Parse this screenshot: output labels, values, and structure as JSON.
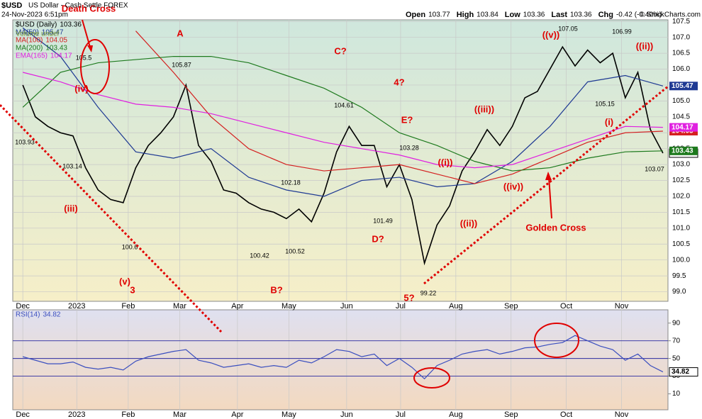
{
  "header": {
    "symbol": "$USD",
    "name": "US Dollar - Cash Settle FOREX",
    "timestamp": "24-Nov-2023 6:51pm",
    "copyright": "© StockCharts.com",
    "quote": [
      {
        "label": "Open",
        "value": 103.77
      },
      {
        "label": "High",
        "value": 103.84
      },
      {
        "label": "Low",
        "value": 103.36
      },
      {
        "label": "Last",
        "value": 103.36
      },
      {
        "label": "Chg",
        "value": -0.42
      }
    ],
    "change_pct": "(-0.40%)"
  },
  "chart_data": [
    {
      "type": "line",
      "volume_note": "Volume undef",
      "xlim": [
        -0.8,
        51.4
      ],
      "xticks": [
        {
          "value": 0,
          "label": "Dec"
        },
        {
          "value": 4.3,
          "label": "2023"
        },
        {
          "value": 8.4,
          "label": "Feb"
        },
        {
          "value": 12.5,
          "label": "Mar"
        },
        {
          "value": 17.1,
          "label": "Apr"
        },
        {
          "value": 21.2,
          "label": "May"
        },
        {
          "value": 25.8,
          "label": "Jun"
        },
        {
          "value": 30.1,
          "label": "Jul"
        },
        {
          "value": 34.5,
          "label": "Aug"
        },
        {
          "value": 38.9,
          "label": "Sep"
        },
        {
          "value": 43.3,
          "label": "Oct"
        },
        {
          "value": 47.7,
          "label": "Nov"
        }
      ],
      "ylim": [
        98.7,
        107.55
      ],
      "yticks": [
        {
          "value": 99,
          "label": "99.0"
        },
        {
          "value": 99.5,
          "label": "99.5"
        },
        {
          "value": 100,
          "label": "100.0"
        },
        {
          "value": 100.5,
          "label": "100.5"
        },
        {
          "value": 101,
          "label": "101.0"
        },
        {
          "value": 101.5,
          "label": "101.5"
        },
        {
          "value": 102,
          "label": "102.0"
        },
        {
          "value": 102.5,
          "label": "102.5"
        },
        {
          "value": 103,
          "label": "103.0"
        },
        {
          "value": 103.5,
          "label": "103.5"
        },
        {
          "value": 104,
          "label": "104.0"
        },
        {
          "value": 104.5,
          "label": "104.5"
        },
        {
          "value": 105,
          "label": "105.0"
        },
        {
          "value": 105.5,
          "label": "105.5"
        },
        {
          "value": 106,
          "label": "106.0"
        },
        {
          "value": 106.5,
          "label": "106.5"
        },
        {
          "value": 107,
          "label": "107.0"
        },
        {
          "value": 107.5,
          "label": "107.5"
        }
      ],
      "grid": true,
      "series": [
        {
          "name": "$USD (Daily)",
          "last": 103.36,
          "color": "#000000",
          "x": [
            0,
            1,
            2,
            3,
            4,
            5,
            6,
            7,
            8,
            9,
            10,
            11,
            12,
            13,
            14,
            15,
            16,
            17,
            18,
            19,
            20,
            21,
            22,
            23,
            24,
            25,
            26,
            27,
            28,
            29,
            30,
            31,
            32,
            33,
            34,
            35,
            36,
            37,
            38,
            39,
            40,
            41,
            42,
            43,
            44,
            45,
            46,
            47,
            48,
            49,
            50,
            51
          ],
          "values": [
            105.5,
            104.5,
            104.2,
            104.0,
            103.9,
            102.9,
            102.2,
            101.9,
            101.8,
            102.9,
            103.6,
            104.0,
            104.5,
            105.5,
            103.6,
            103.1,
            102.2,
            102.1,
            101.8,
            101.6,
            101.5,
            101.3,
            101.6,
            101.2,
            102.1,
            103.4,
            104.2,
            103.6,
            103.6,
            102.3,
            103.0,
            101.9,
            99.9,
            101.1,
            101.7,
            102.8,
            103.4,
            104.1,
            103.6,
            104.2,
            105.1,
            105.3,
            106.0,
            106.7,
            106.1,
            106.6,
            106.2,
            106.5,
            105.1,
            105.9,
            104.1,
            103.36
          ]
        },
        {
          "name": "MA(50)",
          "last": 105.47,
          "color": "#1f3a93",
          "x": [
            0,
            3,
            6,
            9,
            12,
            15,
            18,
            21,
            24,
            27,
            30,
            33,
            36,
            39,
            42,
            45,
            48,
            51
          ],
          "values": [
            107.3,
            106.4,
            104.8,
            103.4,
            103.2,
            103.5,
            102.6,
            102.2,
            102.0,
            102.5,
            102.6,
            102.3,
            102.4,
            103.1,
            104.2,
            105.6,
            105.8,
            105.47
          ]
        },
        {
          "name": "MA(100)",
          "last": 104.05,
          "color": "#d42020",
          "x": [
            0,
            3,
            6,
            9,
            12,
            15,
            18,
            21,
            24,
            27,
            30,
            33,
            36,
            39,
            42,
            45,
            48,
            51
          ],
          "values": [
            null,
            null,
            null,
            107.2,
            105.9,
            104.5,
            103.5,
            103.0,
            102.8,
            102.9,
            103.0,
            102.7,
            102.4,
            102.7,
            103.2,
            103.7,
            104.0,
            104.05
          ]
        },
        {
          "name": "MA(200)",
          "last": 103.43,
          "color": "#1e7a1e",
          "x": [
            0,
            3,
            6,
            9,
            12,
            15,
            18,
            21,
            24,
            27,
            30,
            33,
            36,
            39,
            42,
            45,
            48,
            51
          ],
          "values": [
            104.8,
            105.9,
            106.2,
            106.3,
            106.4,
            106.4,
            106.2,
            105.8,
            105.4,
            104.8,
            104.0,
            103.6,
            103.1,
            102.8,
            102.9,
            103.2,
            103.4,
            103.43
          ]
        },
        {
          "name": "EMA(165)",
          "last": 104.17,
          "color": "#e020e0",
          "x": [
            0,
            3,
            6,
            9,
            12,
            15,
            18,
            21,
            24,
            27,
            30,
            33,
            36,
            39,
            42,
            45,
            48,
            51
          ],
          "values": [
            105.9,
            105.6,
            105.2,
            104.9,
            104.8,
            104.6,
            104.3,
            104.0,
            103.7,
            103.5,
            103.3,
            103.0,
            102.9,
            103.0,
            103.4,
            103.8,
            104.2,
            104.17
          ]
        }
      ],
      "annotation_color": "#e00000",
      "annotations": [
        "Death Cross",
        "A",
        "C?",
        "4?",
        "E?",
        "(iv)",
        "(iii)",
        "(v)",
        "3",
        "B?",
        "D?",
        "5?",
        "((v))",
        "((ii))",
        "((iii))",
        "((i))",
        "(i)",
        "((ii))",
        "((iv))",
        "Golden Cross"
      ],
      "price_labels": [
        105.87,
        104.61,
        103.28,
        102.18,
        101.49,
        100.42,
        100.52,
        100.6,
        103.14,
        103.93,
        105.5,
        107.05,
        106.99,
        105.15,
        103.07,
        99.22
      ]
    },
    {
      "type": "line",
      "xlim": [
        -0.8,
        51.4
      ],
      "xticks": [
        {
          "value": 0,
          "label": "Dec"
        },
        {
          "value": 4.3,
          "label": "2023"
        },
        {
          "value": 8.4,
          "label": "Feb"
        },
        {
          "value": 12.5,
          "label": "Mar"
        },
        {
          "value": 17.1,
          "label": "Apr"
        },
        {
          "value": 21.2,
          "label": "May"
        },
        {
          "value": 25.8,
          "label": "Jun"
        },
        {
          "value": 30.1,
          "label": "Jul"
        },
        {
          "value": 34.5,
          "label": "Aug"
        },
        {
          "value": 38.9,
          "label": "Sep"
        },
        {
          "value": 43.3,
          "label": "Oct"
        },
        {
          "value": 47.7,
          "label": "Nov"
        }
      ],
      "ylim": [
        -8,
        105
      ],
      "yticks": [
        10,
        30,
        50,
        70,
        90
      ],
      "levels": [
        30,
        50,
        70
      ],
      "series": [
        {
          "name": "RSI(14)",
          "last": 34.82,
          "color": "#3b4fbf",
          "x": [
            0,
            1,
            2,
            3,
            4,
            5,
            6,
            7,
            8,
            9,
            10,
            11,
            12,
            13,
            14,
            15,
            16,
            17,
            18,
            19,
            20,
            21,
            22,
            23,
            24,
            25,
            26,
            27,
            28,
            29,
            30,
            31,
            32,
            33,
            34,
            35,
            36,
            37,
            38,
            39,
            40,
            41,
            42,
            43,
            44,
            45,
            46,
            47,
            48,
            49,
            50,
            51
          ],
          "values": [
            52,
            48,
            44,
            44,
            46,
            40,
            38,
            40,
            37,
            47,
            52,
            55,
            58,
            60,
            48,
            45,
            40,
            42,
            44,
            40,
            42,
            40,
            48,
            45,
            52,
            60,
            58,
            52,
            55,
            42,
            50,
            40,
            27,
            42,
            48,
            55,
            58,
            60,
            55,
            58,
            62,
            63,
            66,
            68,
            76,
            70,
            64,
            60,
            48,
            55,
            42,
            34.82
          ]
        }
      ]
    }
  ]
}
